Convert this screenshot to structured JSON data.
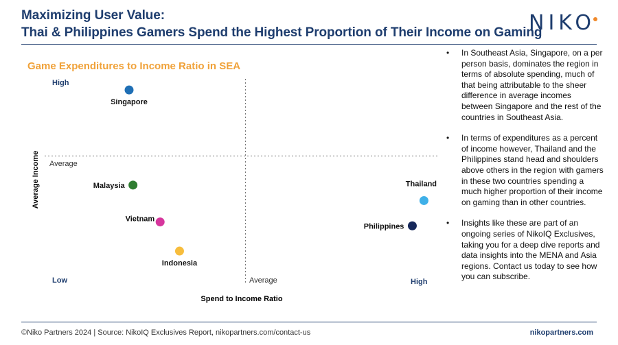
{
  "header": {
    "title_line1": "Maximizing User Value:",
    "title_line2": "Thai & Philippines Gamers Spend the Highest Proportion of Their Income on Gaming",
    "logo_text": "NIKO",
    "logo_dot_color": "#f0892b",
    "title_color": "#1e3d6e"
  },
  "chart_data": {
    "type": "scatter",
    "title": "Game Expenditures to Income Ratio in SEA",
    "title_color": "#f0a23a",
    "xlabel": "Spend to Income Ratio",
    "ylabel": "Average Income",
    "xlim": [
      0,
      10
    ],
    "ylim": [
      0,
      10
    ],
    "x_ticks": {
      "low": "Low",
      "mid": "Average",
      "high": "High"
    },
    "y_ticks": {
      "low": "Low",
      "mid": "Average",
      "high": "High"
    },
    "reference_lines": {
      "x": 5,
      "y": 6.1
    },
    "points": [
      {
        "label": "Singapore",
        "x": 2.0,
        "y": 9.5,
        "color": "#1f6fb5",
        "label_pos": "below"
      },
      {
        "label": "Malaysia",
        "x": 2.1,
        "y": 4.6,
        "color": "#2f7d31",
        "label_pos": "left"
      },
      {
        "label": "Vietnam",
        "x": 2.8,
        "y": 2.7,
        "color": "#d6369d",
        "label_pos": "left-above"
      },
      {
        "label": "Indonesia",
        "x": 3.3,
        "y": 1.2,
        "color": "#f7bd3d",
        "label_pos": "below"
      },
      {
        "label": "Thailand",
        "x": 9.6,
        "y": 3.8,
        "color": "#3fb0e8",
        "label_pos": "above"
      },
      {
        "label": "Philippines",
        "x": 9.3,
        "y": 2.5,
        "color": "#16285a",
        "label_pos": "left"
      }
    ]
  },
  "bullets": [
    "In Southeast Asia, Singapore, on a per person basis, dominates the region in terms of absolute spending, much of that being attributable to the sheer difference in average incomes between Singapore and the rest of the countries in Southeast Asia.",
    "In terms of expenditures as a percent of income however, Thailand and the Philippines stand head and shoulders above others in the region with gamers in these two countries spending a much higher proportion of their income on gaming than in other countries.",
    "Insights like these are part of an ongoing series of NikoIQ Exclusives, taking you for a deep dive reports and data insights into the MENA and Asia regions. Contact us today to see how you can subscribe."
  ],
  "footer": {
    "left": "©Niko Partners 2024  |  Source: NikoIQ Exclusives Report,  nikopartners.com/contact-us",
    "right": "nikopartners.com"
  }
}
